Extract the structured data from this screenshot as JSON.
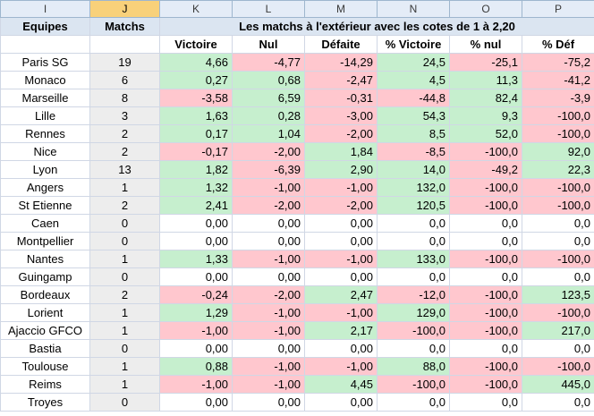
{
  "column_headers": [
    "I",
    "J",
    "K",
    "L",
    "M",
    "N",
    "O",
    "P"
  ],
  "selected_column": "J",
  "header": {
    "equipes": "Equipes",
    "matchs": "Matchs",
    "title": "Les matchs à l'extérieur avec les cotes de 1 à 2,20"
  },
  "subheaders": [
    "Victoire",
    "Nul",
    "Défaite",
    "% Victoire",
    "% nul",
    "% Déf"
  ],
  "rows": [
    {
      "team": "Paris SG",
      "matchs": "19",
      "cells": [
        [
          "4,66",
          "g"
        ],
        [
          "-4,77",
          "r"
        ],
        [
          "-14,29",
          "r"
        ],
        [
          "24,5",
          "g"
        ],
        [
          "-25,1",
          "r"
        ],
        [
          "-75,2",
          "r"
        ]
      ]
    },
    {
      "team": "Monaco",
      "matchs": "6",
      "cells": [
        [
          "0,27",
          "g"
        ],
        [
          "0,68",
          "g"
        ],
        [
          "-2,47",
          "r"
        ],
        [
          "4,5",
          "g"
        ],
        [
          "11,3",
          "g"
        ],
        [
          "-41,2",
          "r"
        ]
      ]
    },
    {
      "team": "Marseille",
      "matchs": "8",
      "cells": [
        [
          "-3,58",
          "r"
        ],
        [
          "6,59",
          "g"
        ],
        [
          "-0,31",
          "r"
        ],
        [
          "-44,8",
          "r"
        ],
        [
          "82,4",
          "g"
        ],
        [
          "-3,9",
          "r"
        ]
      ]
    },
    {
      "team": "Lille",
      "matchs": "3",
      "cells": [
        [
          "1,63",
          "g"
        ],
        [
          "0,28",
          "g"
        ],
        [
          "-3,00",
          "r"
        ],
        [
          "54,3",
          "g"
        ],
        [
          "9,3",
          "g"
        ],
        [
          "-100,0",
          "r"
        ]
      ]
    },
    {
      "team": "Rennes",
      "matchs": "2",
      "cells": [
        [
          "0,17",
          "g"
        ],
        [
          "1,04",
          "g"
        ],
        [
          "-2,00",
          "r"
        ],
        [
          "8,5",
          "g"
        ],
        [
          "52,0",
          "g"
        ],
        [
          "-100,0",
          "r"
        ]
      ]
    },
    {
      "team": "Nice",
      "matchs": "2",
      "cells": [
        [
          "-0,17",
          "r"
        ],
        [
          "-2,00",
          "r"
        ],
        [
          "1,84",
          "g"
        ],
        [
          "-8,5",
          "r"
        ],
        [
          "-100,0",
          "r"
        ],
        [
          "92,0",
          "g"
        ]
      ]
    },
    {
      "team": "Lyon",
      "matchs": "13",
      "cells": [
        [
          "1,82",
          "g"
        ],
        [
          "-6,39",
          "r"
        ],
        [
          "2,90",
          "g"
        ],
        [
          "14,0",
          "g"
        ],
        [
          "-49,2",
          "r"
        ],
        [
          "22,3",
          "g"
        ]
      ]
    },
    {
      "team": "Angers",
      "matchs": "1",
      "cells": [
        [
          "1,32",
          "g"
        ],
        [
          "-1,00",
          "r"
        ],
        [
          "-1,00",
          "r"
        ],
        [
          "132,0",
          "g"
        ],
        [
          "-100,0",
          "r"
        ],
        [
          "-100,0",
          "r"
        ]
      ]
    },
    {
      "team": "St Etienne",
      "matchs": "2",
      "cells": [
        [
          "2,41",
          "g"
        ],
        [
          "-2,00",
          "r"
        ],
        [
          "-2,00",
          "r"
        ],
        [
          "120,5",
          "g"
        ],
        [
          "-100,0",
          "r"
        ],
        [
          "-100,0",
          "r"
        ]
      ]
    },
    {
      "team": "Caen",
      "matchs": "0",
      "cells": [
        [
          "0,00",
          ""
        ],
        [
          "0,00",
          ""
        ],
        [
          "0,00",
          ""
        ],
        [
          "0,0",
          ""
        ],
        [
          "0,0",
          ""
        ],
        [
          "0,0",
          ""
        ]
      ]
    },
    {
      "team": "Montpellier",
      "matchs": "0",
      "cells": [
        [
          "0,00",
          ""
        ],
        [
          "0,00",
          ""
        ],
        [
          "0,00",
          ""
        ],
        [
          "0,0",
          ""
        ],
        [
          "0,0",
          ""
        ],
        [
          "0,0",
          ""
        ]
      ]
    },
    {
      "team": "Nantes",
      "matchs": "1",
      "cells": [
        [
          "1,33",
          "g"
        ],
        [
          "-1,00",
          "r"
        ],
        [
          "-1,00",
          "r"
        ],
        [
          "133,0",
          "g"
        ],
        [
          "-100,0",
          "r"
        ],
        [
          "-100,0",
          "r"
        ]
      ]
    },
    {
      "team": "Guingamp",
      "matchs": "0",
      "cells": [
        [
          "0,00",
          ""
        ],
        [
          "0,00",
          ""
        ],
        [
          "0,00",
          ""
        ],
        [
          "0,0",
          ""
        ],
        [
          "0,0",
          ""
        ],
        [
          "0,0",
          ""
        ]
      ]
    },
    {
      "team": "Bordeaux",
      "matchs": "2",
      "cells": [
        [
          "-0,24",
          "r"
        ],
        [
          "-2,00",
          "r"
        ],
        [
          "2,47",
          "g"
        ],
        [
          "-12,0",
          "r"
        ],
        [
          "-100,0",
          "r"
        ],
        [
          "123,5",
          "g"
        ]
      ]
    },
    {
      "team": "Lorient",
      "matchs": "1",
      "cells": [
        [
          "1,29",
          "g"
        ],
        [
          "-1,00",
          "r"
        ],
        [
          "-1,00",
          "r"
        ],
        [
          "129,0",
          "g"
        ],
        [
          "-100,0",
          "r"
        ],
        [
          "-100,0",
          "r"
        ]
      ]
    },
    {
      "team": "Ajaccio GFCO",
      "matchs": "1",
      "cells": [
        [
          "-1,00",
          "r"
        ],
        [
          "-1,00",
          "r"
        ],
        [
          "2,17",
          "g"
        ],
        [
          "-100,0",
          "r"
        ],
        [
          "-100,0",
          "r"
        ],
        [
          "217,0",
          "g"
        ]
      ]
    },
    {
      "team": "Bastia",
      "matchs": "0",
      "cells": [
        [
          "0,00",
          ""
        ],
        [
          "0,00",
          ""
        ],
        [
          "0,00",
          ""
        ],
        [
          "0,0",
          ""
        ],
        [
          "0,0",
          ""
        ],
        [
          "0,0",
          ""
        ]
      ]
    },
    {
      "team": "Toulouse",
      "matchs": "1",
      "cells": [
        [
          "0,88",
          "g"
        ],
        [
          "-1,00",
          "r"
        ],
        [
          "-1,00",
          "r"
        ],
        [
          "88,0",
          "g"
        ],
        [
          "-100,0",
          "r"
        ],
        [
          "-100,0",
          "r"
        ]
      ]
    },
    {
      "team": "Reims",
      "matchs": "1",
      "cells": [
        [
          "-1,00",
          "r"
        ],
        [
          "-1,00",
          "r"
        ],
        [
          "4,45",
          "g"
        ],
        [
          "-100,0",
          "r"
        ],
        [
          "-100,0",
          "r"
        ],
        [
          "445,0",
          "g"
        ]
      ]
    },
    {
      "team": "Troyes",
      "matchs": "0",
      "cells": [
        [
          "0,00",
          ""
        ],
        [
          "0,00",
          ""
        ],
        [
          "0,00",
          ""
        ],
        [
          "0,0",
          ""
        ],
        [
          "0,0",
          ""
        ],
        [
          "0,0",
          ""
        ]
      ]
    }
  ],
  "colors": {
    "positive_fill": "#c6efce",
    "positive_text": "#006100",
    "negative_fill": "#ffc7ce",
    "negative_text": "#9c0006",
    "header_fill": "#dbe5f1",
    "selected_column_header": "#f8d17a"
  }
}
